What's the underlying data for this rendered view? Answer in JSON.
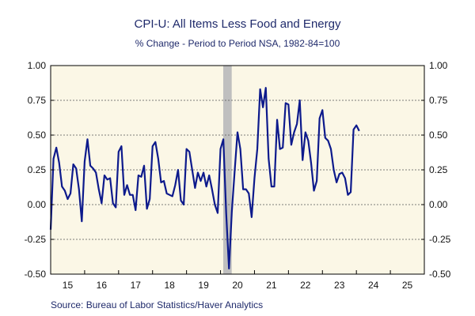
{
  "chart_data": {
    "type": "line",
    "title": "CPI-U: All Items Less Food and Energy",
    "subtitle": "% Change - Period to Period     NSA, 1982-84=100",
    "source": "Source:  Bureau of Labor Statistics/Haver Analytics",
    "ylim": [
      -0.5,
      1.0
    ],
    "y_ticks": [
      -0.5,
      -0.25,
      0.0,
      0.25,
      0.5,
      0.75,
      1.0
    ],
    "y_tick_labels": [
      "-0.50",
      "-0.25",
      "0.00",
      "0.25",
      "0.50",
      "0.75",
      "1.00"
    ],
    "x_tick_labels": [
      "15",
      "16",
      "17",
      "18",
      "19",
      "20",
      "21",
      "22",
      "23",
      "24",
      "25"
    ],
    "x_range": [
      2015.0,
      2026.0
    ],
    "grid": true,
    "plot_background": "#fbf7e6",
    "line_color": "#0d1a8c",
    "recession": [
      2020.08,
      2020.33
    ],
    "recession_color": "#bfbfbf",
    "series": [
      {
        "x_start": 2015.0,
        "x_step": 0.08333,
        "values": [
          -0.18,
          0.33,
          0.41,
          0.3,
          0.13,
          0.1,
          0.04,
          0.08,
          0.29,
          0.26,
          0.11,
          -0.12,
          0.31,
          0.47,
          0.28,
          0.26,
          0.23,
          0.11,
          0.01,
          0.21,
          0.18,
          0.19,
          0.01,
          -0.02,
          0.38,
          0.42,
          0.07,
          0.14,
          0.07,
          0.07,
          -0.04,
          0.21,
          0.2,
          0.28,
          -0.03,
          0.04,
          0.42,
          0.45,
          0.33,
          0.16,
          0.17,
          0.08,
          0.07,
          0.06,
          0.14,
          0.25,
          0.03,
          0.0,
          0.4,
          0.38,
          0.25,
          0.12,
          0.23,
          0.17,
          0.23,
          0.13,
          0.21,
          0.11,
          0.0,
          -0.06,
          0.4,
          0.47,
          -0.06,
          -0.46,
          -0.05,
          0.24,
          0.52,
          0.4,
          0.11,
          0.11,
          0.08,
          -0.09,
          0.19,
          0.4,
          0.83,
          0.7,
          0.84,
          0.33,
          0.13,
          0.13,
          0.61,
          0.4,
          0.41,
          0.73,
          0.72,
          0.43,
          0.52,
          0.58,
          0.75,
          0.32,
          0.52,
          0.46,
          0.3,
          0.1,
          0.17,
          0.62,
          0.68,
          0.48,
          0.46,
          0.4,
          0.25,
          0.16,
          0.22,
          0.23,
          0.19,
          0.07,
          0.09,
          0.54,
          0.57,
          0.53
        ]
      }
    ]
  }
}
